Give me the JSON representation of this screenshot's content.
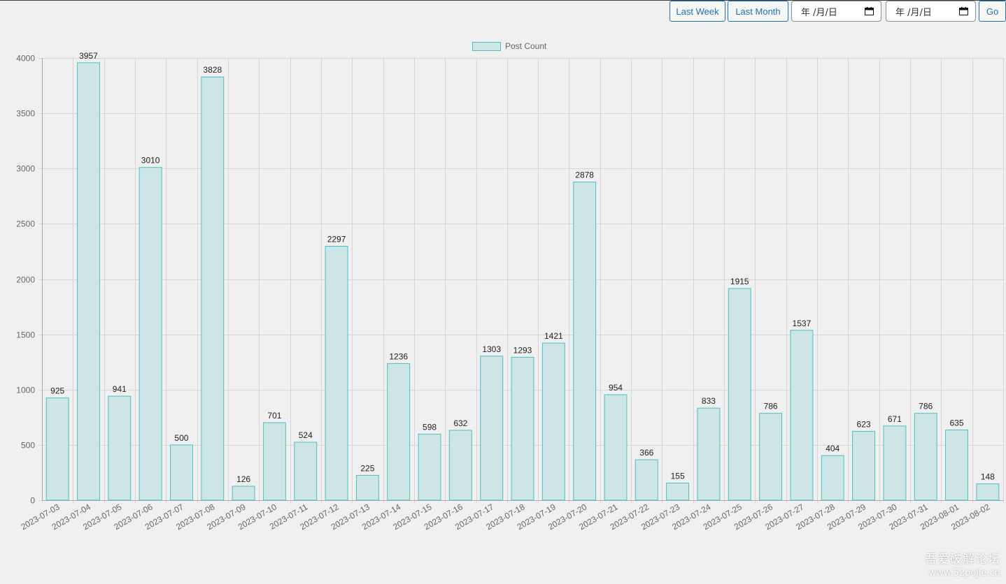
{
  "toolbar": {
    "last_week_label": "Last Week",
    "last_month_label": "Last Month",
    "start_date_placeholder": "年 /月/日",
    "end_date_placeholder": "年 /月/日",
    "go_label": "Go"
  },
  "watermark": {
    "line1": "吾爱破解论坛",
    "line2": "www.52pojie.cn"
  },
  "colors": {
    "bar_fill": "#cde5e5",
    "bar_stroke": "#4bc0c0",
    "grid": "#d5d5d5",
    "axis_text": "#666666",
    "label_text": "#222222"
  },
  "chart_data": {
    "type": "bar",
    "legend": "Post Count",
    "legend_position": "top",
    "grid": true,
    "categories": [
      "2023-07-03",
      "2023-07-04",
      "2023-07-05",
      "2023-07-06",
      "2023-07-07",
      "2023-07-08",
      "2023-07-09",
      "2023-07-10",
      "2023-07-11",
      "2023-07-12",
      "2023-07-13",
      "2023-07-14",
      "2023-07-15",
      "2023-07-16",
      "2023-07-17",
      "2023-07-18",
      "2023-07-19",
      "2023-07-20",
      "2023-07-21",
      "2023-07-22",
      "2023-07-23",
      "2023-07-24",
      "2023-07-25",
      "2023-07-26",
      "2023-07-27",
      "2023-07-28",
      "2023-07-29",
      "2023-07-30",
      "2023-07-31",
      "2023-08-01",
      "2023-08-02"
    ],
    "series": [
      {
        "name": "Post Count",
        "values": [
          925,
          3957,
          941,
          3010,
          500,
          3828,
          126,
          701,
          524,
          2297,
          225,
          1236,
          598,
          632,
          1303,
          1293,
          1421,
          2878,
          954,
          366,
          155,
          833,
          1915,
          786,
          1537,
          404,
          623,
          671,
          786,
          635,
          148
        ]
      }
    ],
    "ylim": [
      0,
      4000
    ],
    "yticks": [
      0,
      500,
      1000,
      1500,
      2000,
      2500,
      3000,
      3500,
      4000
    ]
  }
}
